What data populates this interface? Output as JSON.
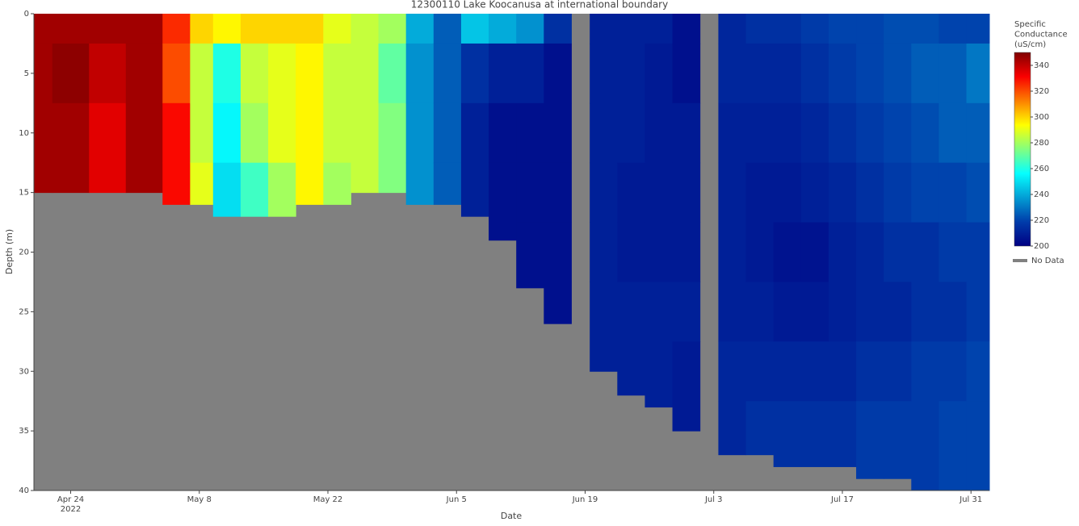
{
  "chart_data": {
    "type": "heatmap",
    "title": "12300110 Lake Koocanusa at international boundary",
    "xlabel": "Date",
    "ylabel": "Depth (m)",
    "colorbar_title": [
      "Specific",
      "Conductance",
      "(uS/cm)"
    ],
    "colorscale": "Jet",
    "zlim": [
      200,
      350
    ],
    "zticks": [
      200,
      220,
      240,
      260,
      280,
      300,
      320,
      340
    ],
    "nodata_label": "No Data",
    "nodata_color": "#808080",
    "xlim": [
      "2022-04-20",
      "2022-08-02"
    ],
    "xticks": [
      {
        "value": "2022-04-24",
        "label": "Apr 24"
      },
      {
        "value": "2022-05-08",
        "label": "May 8"
      },
      {
        "value": "2022-05-22",
        "label": "May 22"
      },
      {
        "value": "2022-06-05",
        "label": "Jun 5"
      },
      {
        "value": "2022-06-19",
        "label": "Jun 19"
      },
      {
        "value": "2022-07-03",
        "label": "Jul 3"
      },
      {
        "value": "2022-07-17",
        "label": "Jul 17"
      },
      {
        "value": "2022-07-31",
        "label": "Jul 31"
      }
    ],
    "x_year_label": "2022",
    "ylim": [
      0,
      40
    ],
    "y_reversed": true,
    "yticks": [
      0,
      5,
      10,
      15,
      20,
      25,
      30,
      35,
      40
    ],
    "depths": [
      0,
      5,
      10,
      15,
      20,
      25,
      30,
      35
    ],
    "x": [
      "2022-04-20",
      "2022-04-24",
      "2022-04-28",
      "2022-05-02",
      "2022-05-06",
      "2022-05-08",
      "2022-05-11",
      "2022-05-14",
      "2022-05-17",
      "2022-05-20",
      "2022-05-23",
      "2022-05-26",
      "2022-05-29",
      "2022-06-01",
      "2022-06-04",
      "2022-06-07",
      "2022-06-10",
      "2022-06-13",
      "2022-06-16",
      "2022-06-21",
      "2022-06-24",
      "2022-06-27",
      "2022-06-30",
      "2022-07-05",
      "2022-07-08",
      "2022-07-11",
      "2022-07-14",
      "2022-07-17",
      "2022-07-20",
      "2022-07-23",
      "2022-07-26",
      "2022-07-29",
      "2022-08-01"
    ],
    "max_depth": [
      15,
      15,
      15,
      15,
      16,
      16,
      17,
      17,
      17,
      16,
      16,
      15,
      15,
      16,
      16,
      17,
      19,
      23,
      26,
      30,
      32,
      33,
      35,
      37,
      37,
      38,
      38,
      38,
      39,
      39,
      40,
      40,
      40
    ],
    "values": [
      [
        345,
        345,
        345
      ],
      [
        345,
        348,
        345
      ],
      [
        345,
        340,
        335
      ],
      [
        345,
        345,
        345
      ],
      [
        325,
        320,
        330,
        330
      ],
      [
        300,
        285,
        285,
        290
      ],
      [
        295,
        260,
        255,
        250
      ],
      [
        300,
        285,
        280,
        265
      ],
      [
        300,
        290,
        290,
        280
      ],
      [
        300,
        295,
        295,
        295
      ],
      [
        290,
        285,
        285,
        280
      ],
      [
        285,
        285,
        285
      ],
      [
        280,
        270,
        275
      ],
      [
        240,
        235,
        235,
        235
      ],
      [
        225,
        225,
        225,
        225
      ],
      [
        245,
        215,
        210,
        210
      ],
      [
        240,
        210,
        205,
        205
      ],
      [
        235,
        210,
        205,
        205,
        205
      ],
      [
        215,
        205,
        205,
        205,
        205,
        205
      ],
      [
        210,
        210,
        210,
        210,
        210,
        210
      ],
      [
        210,
        210,
        210,
        208,
        208,
        210,
        210
      ],
      [
        210,
        208,
        208,
        208,
        208,
        210,
        210
      ],
      [
        205,
        205,
        208,
        208,
        208,
        210,
        208
      ],
      [
        212,
        212,
        210,
        210,
        210,
        210,
        212,
        212
      ],
      [
        215,
        212,
        210,
        208,
        208,
        210,
        212,
        215
      ],
      [
        215,
        212,
        210,
        208,
        206,
        208,
        212,
        215
      ],
      [
        218,
        215,
        212,
        210,
        206,
        208,
        212,
        215
      ],
      [
        220,
        218,
        215,
        212,
        210,
        210,
        212,
        215
      ],
      [
        220,
        220,
        218,
        215,
        212,
        212,
        215,
        218
      ],
      [
        222,
        222,
        220,
        218,
        215,
        212,
        215,
        218
      ],
      [
        222,
        225,
        222,
        220,
        215,
        215,
        218,
        218
      ],
      [
        220,
        225,
        225,
        220,
        218,
        215,
        218,
        220
      ],
      [
        220,
        230,
        225,
        222,
        218,
        218,
        220,
        220
      ]
    ]
  }
}
